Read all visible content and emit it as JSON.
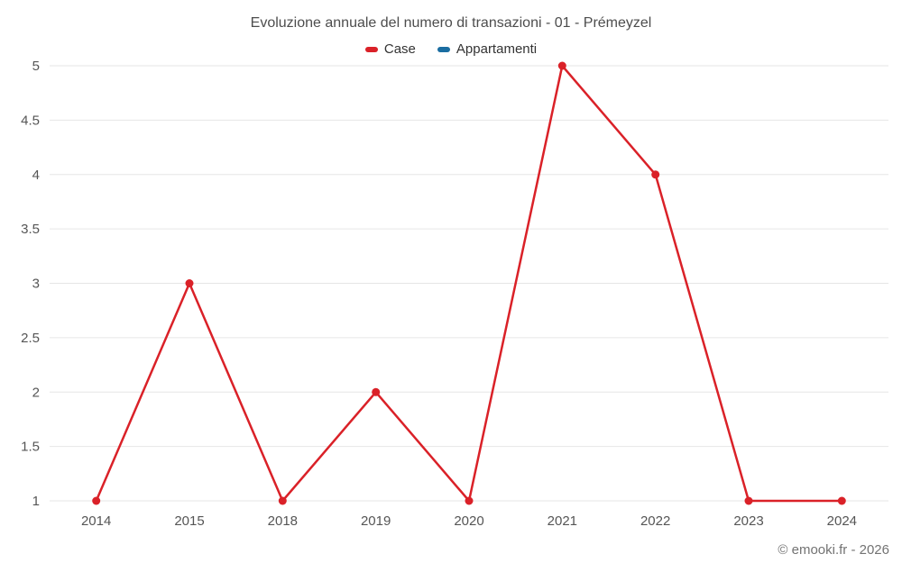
{
  "footer": {
    "credit": "© emooki.fr - 2026"
  },
  "chart_data": {
    "type": "line",
    "title": "Evoluzione annuale del numero di transazioni - 01 - Prémeyzel",
    "categories": [
      "2014",
      "2015",
      "2018",
      "2019",
      "2020",
      "2021",
      "2022",
      "2023",
      "2024"
    ],
    "series": [
      {
        "name": "Case",
        "color": "#da2128",
        "values": [
          1,
          3,
          1,
          2,
          1,
          5,
          4,
          1,
          1
        ]
      },
      {
        "name": "Appartamenti",
        "color": "#1a6da1",
        "values": []
      }
    ],
    "xlabel": "",
    "ylabel": "",
    "ylim": [
      1,
      5
    ],
    "yticks": [
      "1",
      "1.5",
      "2",
      "2.5",
      "3",
      "3.5",
      "4",
      "4.5",
      "5"
    ],
    "grid": true,
    "grid_color": "#e6e6e6",
    "legend_position": "top",
    "text_color": "#555555"
  }
}
